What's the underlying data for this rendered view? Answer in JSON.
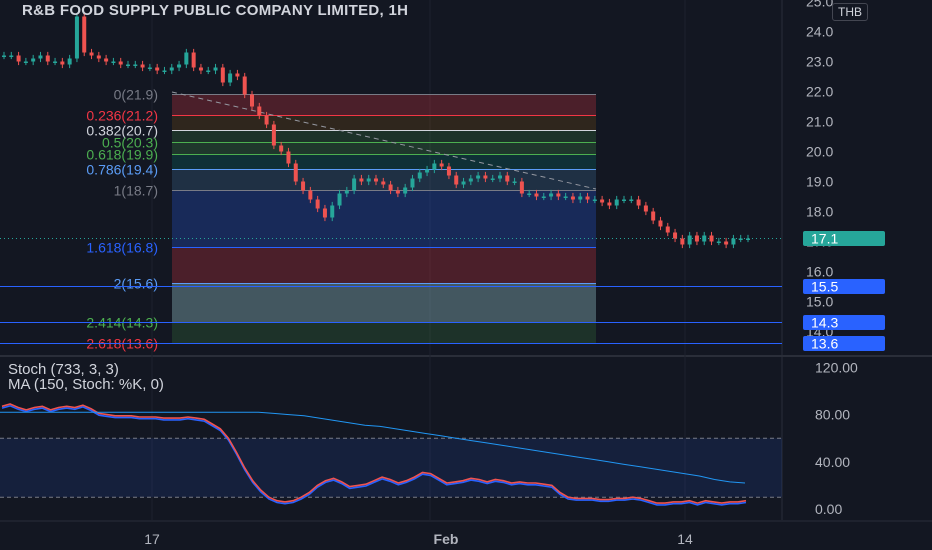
{
  "header": {
    "title": "R&B FOOD SUPPLY PUBLIC COMPANY LIMITED, 1H",
    "currency": "THB"
  },
  "indicator": {
    "line1": "Stoch (733, 3, 3)",
    "line2": "MA (150, Stoch: %K, 0)"
  },
  "price_ticks": [
    "25.0",
    "24.0",
    "23.0",
    "22.0",
    "21.0",
    "20.0",
    "19.0",
    "18.0",
    "17.0",
    "16.0",
    "15.0",
    "14.0"
  ],
  "osc_ticks": [
    "120.00",
    "80.00",
    "40.00",
    "0.00"
  ],
  "time_ticks": [
    "17",
    "Feb",
    "14"
  ],
  "price_badges": [
    {
      "label": "17.1",
      "color": "#26a69a"
    },
    {
      "label": "15.5",
      "color": "#2962ff"
    },
    {
      "label": "14.3",
      "color": "#2962ff"
    },
    {
      "label": "13.6",
      "color": "#2962ff"
    }
  ],
  "fib_labels": [
    {
      "text": "0(21.9)",
      "color": "#787b86"
    },
    {
      "text": "0.236(21.2)",
      "color": "#f23645"
    },
    {
      "text": "0.382(20.7)",
      "color": "#d1d4dc"
    },
    {
      "text": "0.5(20.3)",
      "color": "#4caf50"
    },
    {
      "text": "0.618(19.9)",
      "color": "#4caf50"
    },
    {
      "text": "0.786(19.4)",
      "color": "#5b9cf6"
    },
    {
      "text": "1(18.7)",
      "color": "#787b86"
    },
    {
      "text": "1.618(16.8)",
      "color": "#2962ff"
    },
    {
      "text": "2(15.6)",
      "color": "#5b9cf6"
    },
    {
      "text": "2.414(14.3)",
      "color": "#4caf50"
    },
    {
      "text": "2.618(13.6)",
      "color": "#f23645"
    }
  ],
  "chart_data": {
    "type": "candlestick",
    "price_range": [
      13.3,
      25.0
    ],
    "osc_range": [
      0,
      120
    ],
    "fib_levels": [
      21.9,
      21.2,
      20.7,
      20.3,
      19.9,
      19.4,
      18.7,
      16.8,
      15.6,
      14.3,
      13.6
    ],
    "horizontal_lines": [
      15.5,
      14.3,
      13.6
    ],
    "last_price": 17.1,
    "close": [
      23.2,
      23.2,
      23.0,
      23.0,
      23.1,
      23.2,
      23.0,
      23.0,
      22.9,
      23.1,
      24.5,
      23.3,
      23.2,
      23.1,
      23.0,
      23.0,
      22.9,
      22.9,
      22.9,
      22.8,
      22.8,
      22.7,
      22.7,
      22.8,
      22.9,
      23.3,
      22.8,
      22.7,
      22.7,
      22.8,
      22.3,
      22.6,
      22.5,
      21.9,
      21.5,
      21.2,
      20.9,
      20.2,
      20.0,
      19.6,
      19.0,
      18.7,
      18.4,
      18.1,
      17.8,
      18.2,
      18.6,
      18.7,
      19.1,
      19.0,
      19.1,
      19.0,
      18.9,
      18.7,
      18.6,
      18.8,
      19.1,
      19.3,
      19.4,
      19.6,
      19.5,
      19.2,
      18.9,
      19.0,
      19.1,
      19.2,
      19.1,
      19.1,
      19.2,
      19.0,
      19.0,
      18.6,
      18.6,
      18.5,
      18.5,
      18.6,
      18.5,
      18.5,
      18.4,
      18.5,
      18.4,
      18.4,
      18.3,
      18.2,
      18.4,
      18.4,
      18.4,
      18.2,
      18.0,
      17.7,
      17.5,
      17.3,
      17.1,
      16.9,
      17.2,
      17.0,
      17.2,
      17.0,
      17.0,
      16.9,
      17.1,
      17.1,
      17.1
    ],
    "stoch_k": [
      87,
      89,
      86,
      84,
      86,
      87,
      84,
      86,
      87,
      86,
      88,
      85,
      81,
      80,
      79,
      79,
      79,
      78,
      78,
      78,
      77,
      77,
      77,
      78,
      77,
      76,
      72,
      68,
      60,
      48,
      35,
      24,
      16,
      10,
      7,
      6,
      7,
      10,
      14,
      20,
      24,
      26,
      23,
      19,
      20,
      21,
      24,
      27,
      25,
      22,
      24,
      27,
      31,
      30,
      26,
      22,
      23,
      24,
      26,
      25,
      23,
      25,
      24,
      22,
      23,
      22,
      22,
      21,
      20,
      14,
      10,
      9,
      9,
      9,
      8,
      8,
      9,
      9,
      10,
      9,
      7,
      5,
      5,
      6,
      6,
      7,
      5,
      7,
      6,
      5,
      6,
      6,
      7
    ],
    "stoch_ma": [
      82,
      82,
      82,
      82,
      82,
      82,
      82,
      82,
      82,
      82,
      82,
      82,
      82,
      82,
      82,
      82,
      82,
      82,
      81,
      80,
      79,
      77,
      75,
      73,
      71,
      70,
      68,
      66,
      64,
      62,
      60,
      58,
      56,
      54,
      52,
      50,
      48,
      46,
      44,
      42,
      40,
      38,
      36,
      34,
      32,
      30,
      28,
      25,
      23,
      22
    ],
    "ma_end": 22,
    "time_labels": [
      "17",
      "Feb",
      "14"
    ]
  }
}
